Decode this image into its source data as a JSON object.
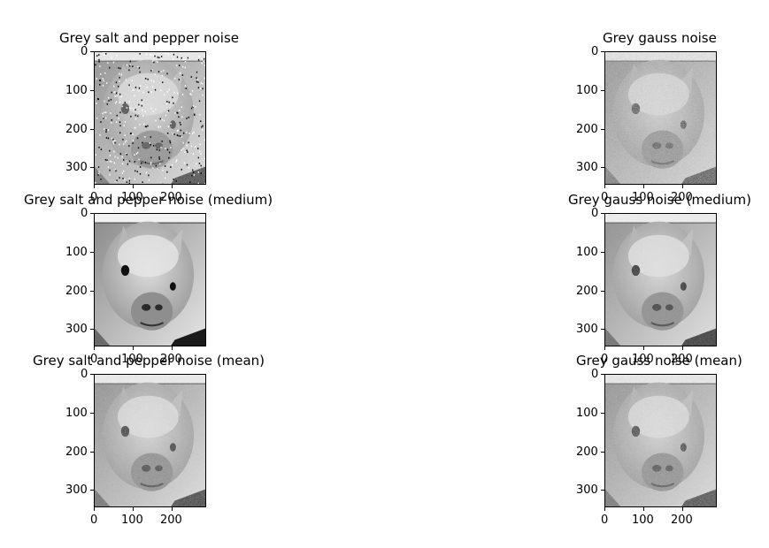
{
  "chart_data": [
    {
      "type": "image",
      "title": "Grey salt and pepper noise",
      "noise": "salt-pepper-heavy",
      "xticks": [
        "0",
        "100",
        "200"
      ],
      "yticks": [
        "0",
        "100",
        "200",
        "300"
      ],
      "xtick_values": [
        0,
        100,
        200
      ],
      "ytick_values": [
        0,
        100,
        200,
        300
      ],
      "xlim": [
        0,
        290
      ],
      "ylim": [
        345,
        0
      ]
    },
    {
      "type": "image",
      "title": "Grey gauss noise",
      "noise": "gauss-heavy",
      "xticks": [
        "0",
        "100",
        "200"
      ],
      "yticks": [
        "0",
        "100",
        "200",
        "300"
      ],
      "xtick_values": [
        0,
        100,
        200
      ],
      "ytick_values": [
        0,
        100,
        200,
        300
      ],
      "xlim": [
        0,
        290
      ],
      "ylim": [
        345,
        0
      ]
    },
    {
      "type": "image",
      "title": "Grey salt and pepper noise (medium)",
      "noise": "clean",
      "xticks": [
        "0",
        "100",
        "200"
      ],
      "yticks": [
        "0",
        "100",
        "200",
        "300"
      ],
      "xtick_values": [
        0,
        100,
        200
      ],
      "ytick_values": [
        0,
        100,
        200,
        300
      ],
      "xlim": [
        0,
        290
      ],
      "ylim": [
        345,
        0
      ]
    },
    {
      "type": "image",
      "title": "Grey gauss noise (medium)",
      "noise": "gauss-light",
      "xticks": [
        "0",
        "100",
        "200"
      ],
      "yticks": [
        "0",
        "100",
        "200",
        "300"
      ],
      "xtick_values": [
        0,
        100,
        200
      ],
      "ytick_values": [
        0,
        100,
        200,
        300
      ],
      "xlim": [
        0,
        290
      ],
      "ylim": [
        345,
        0
      ]
    },
    {
      "type": "image",
      "title": "Grey salt and pepper noise (mean)",
      "noise": "speckle",
      "xticks": [
        "0",
        "100",
        "200"
      ],
      "yticks": [
        "0",
        "100",
        "200",
        "300"
      ],
      "xtick_values": [
        0,
        100,
        200
      ],
      "ytick_values": [
        0,
        100,
        200,
        300
      ],
      "xlim": [
        0,
        290
      ],
      "ylim": [
        345,
        0
      ]
    },
    {
      "type": "image",
      "title": "Grey gauss noise (mean)",
      "noise": "gauss-medium",
      "xticks": [
        "0",
        "100",
        "200"
      ],
      "yticks": [
        "0",
        "100",
        "200",
        "300"
      ],
      "xtick_values": [
        0,
        100,
        200
      ],
      "ytick_values": [
        0,
        100,
        200,
        300
      ],
      "xlim": [
        0,
        290
      ],
      "ylim": [
        345,
        0
      ]
    }
  ]
}
